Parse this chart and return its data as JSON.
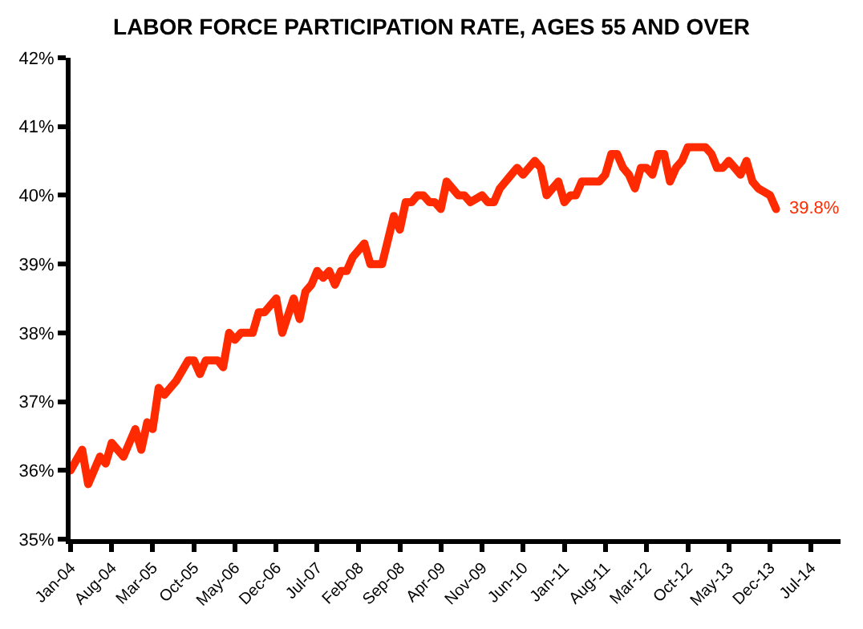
{
  "chart_data": {
    "type": "line",
    "title": "LABOR FORCE PARTICIPATION RATE, AGES 55 AND OVER",
    "x": [
      "2004-01",
      "2004-03",
      "2004-04",
      "2004-06",
      "2004-07",
      "2004-08",
      "2004-10",
      "2004-12",
      "2005-01",
      "2005-02",
      "2005-03",
      "2005-04",
      "2005-05",
      "2005-07",
      "2005-09",
      "2005-10",
      "2005-11",
      "2005-12",
      "2006-02",
      "2006-03",
      "2006-04",
      "2006-05",
      "2006-06",
      "2006-08",
      "2006-09",
      "2006-10",
      "2006-12",
      "2007-01",
      "2007-03",
      "2007-04",
      "2007-05",
      "2007-06",
      "2007-07",
      "2007-08",
      "2007-09",
      "2007-10",
      "2007-11",
      "2007-12",
      "2008-01",
      "2008-03",
      "2008-04",
      "2008-06",
      "2008-08",
      "2008-09",
      "2008-10",
      "2008-11",
      "2008-12",
      "2009-01",
      "2009-02",
      "2009-03",
      "2009-04",
      "2009-05",
      "2009-07",
      "2009-08",
      "2009-09",
      "2009-11",
      "2009-12",
      "2010-01",
      "2010-02",
      "2010-04",
      "2010-05",
      "2010-06",
      "2010-08",
      "2010-09",
      "2010-10",
      "2010-12",
      "2011-01",
      "2011-02",
      "2011-03",
      "2011-04",
      "2011-07",
      "2011-08",
      "2011-09",
      "2011-10",
      "2011-11",
      "2011-12",
      "2012-01",
      "2012-02",
      "2012-03",
      "2012-04",
      "2012-05",
      "2012-06",
      "2012-07",
      "2012-08",
      "2012-09",
      "2012-10",
      "2013-01",
      "2013-02",
      "2013-03",
      "2013-04",
      "2013-05",
      "2013-06",
      "2013-07",
      "2013-08",
      "2013-09",
      "2013-10",
      "2013-12",
      "2014-01"
    ],
    "series": [
      {
        "color": "#ff2a00",
        "values": [
          36.0,
          36.3,
          35.8,
          36.2,
          36.1,
          36.4,
          36.2,
          36.6,
          36.3,
          36.7,
          36.6,
          37.2,
          37.1,
          37.3,
          37.6,
          37.6,
          37.4,
          37.6,
          37.6,
          37.5,
          38.0,
          37.9,
          38.0,
          38.0,
          38.3,
          38.3,
          38.5,
          38.0,
          38.5,
          38.2,
          38.6,
          38.7,
          38.9,
          38.8,
          38.9,
          38.7,
          38.9,
          38.9,
          39.1,
          39.3,
          39.0,
          39.0,
          39.7,
          39.5,
          39.9,
          39.9,
          40.0,
          40.0,
          39.9,
          39.9,
          39.8,
          40.2,
          40.0,
          40.0,
          39.9,
          40.0,
          39.9,
          39.9,
          40.1,
          40.3,
          40.4,
          40.3,
          40.5,
          40.4,
          40.0,
          40.2,
          39.9,
          40.0,
          40.0,
          40.2,
          40.2,
          40.3,
          40.6,
          40.6,
          40.4,
          40.3,
          40.1,
          40.4,
          40.4,
          40.3,
          40.6,
          40.6,
          40.2,
          40.4,
          40.5,
          40.7,
          40.7,
          40.6,
          40.4,
          40.4,
          40.5,
          40.4,
          40.3,
          40.5,
          40.2,
          40.1,
          40.0,
          39.8
        ]
      }
    ],
    "xlim": [
      "2004-01",
      "2014-12"
    ],
    "xticks": [
      {
        "value": "2004-01",
        "label": "Jan-04"
      },
      {
        "value": "2004-08",
        "label": "Aug-04"
      },
      {
        "value": "2005-03",
        "label": "Mar-05"
      },
      {
        "value": "2005-10",
        "label": "Oct-05"
      },
      {
        "value": "2006-05",
        "label": "May-06"
      },
      {
        "value": "2006-12",
        "label": "Dec-06"
      },
      {
        "value": "2007-07",
        "label": "Jul-07"
      },
      {
        "value": "2008-02",
        "label": "Feb-08"
      },
      {
        "value": "2008-09",
        "label": "Sep-08"
      },
      {
        "value": "2009-04",
        "label": "Apr-09"
      },
      {
        "value": "2009-11",
        "label": "Nov-09"
      },
      {
        "value": "2010-06",
        "label": "Jun-10"
      },
      {
        "value": "2011-01",
        "label": "Jan-11"
      },
      {
        "value": "2011-08",
        "label": "Aug-11"
      },
      {
        "value": "2012-03",
        "label": "Mar-12"
      },
      {
        "value": "2012-10",
        "label": "Oct-12"
      },
      {
        "value": "2013-05",
        "label": "May-13"
      },
      {
        "value": "2013-12",
        "label": "Dec-13"
      },
      {
        "value": "2014-07",
        "label": "Jul-14"
      }
    ],
    "ylim": [
      35,
      42
    ],
    "yticks": [
      {
        "value": 35,
        "label": "35%"
      },
      {
        "value": 36,
        "label": "36%"
      },
      {
        "value": 37,
        "label": "37%"
      },
      {
        "value": 38,
        "label": "38%"
      },
      {
        "value": 39,
        "label": "39%"
      },
      {
        "value": 40,
        "label": "40%"
      },
      {
        "value": 41,
        "label": "41%"
      },
      {
        "value": 42,
        "label": "42%"
      }
    ],
    "annotations": [
      {
        "text": "39.8%",
        "x": "2014-01",
        "y": 39.8
      }
    ]
  }
}
